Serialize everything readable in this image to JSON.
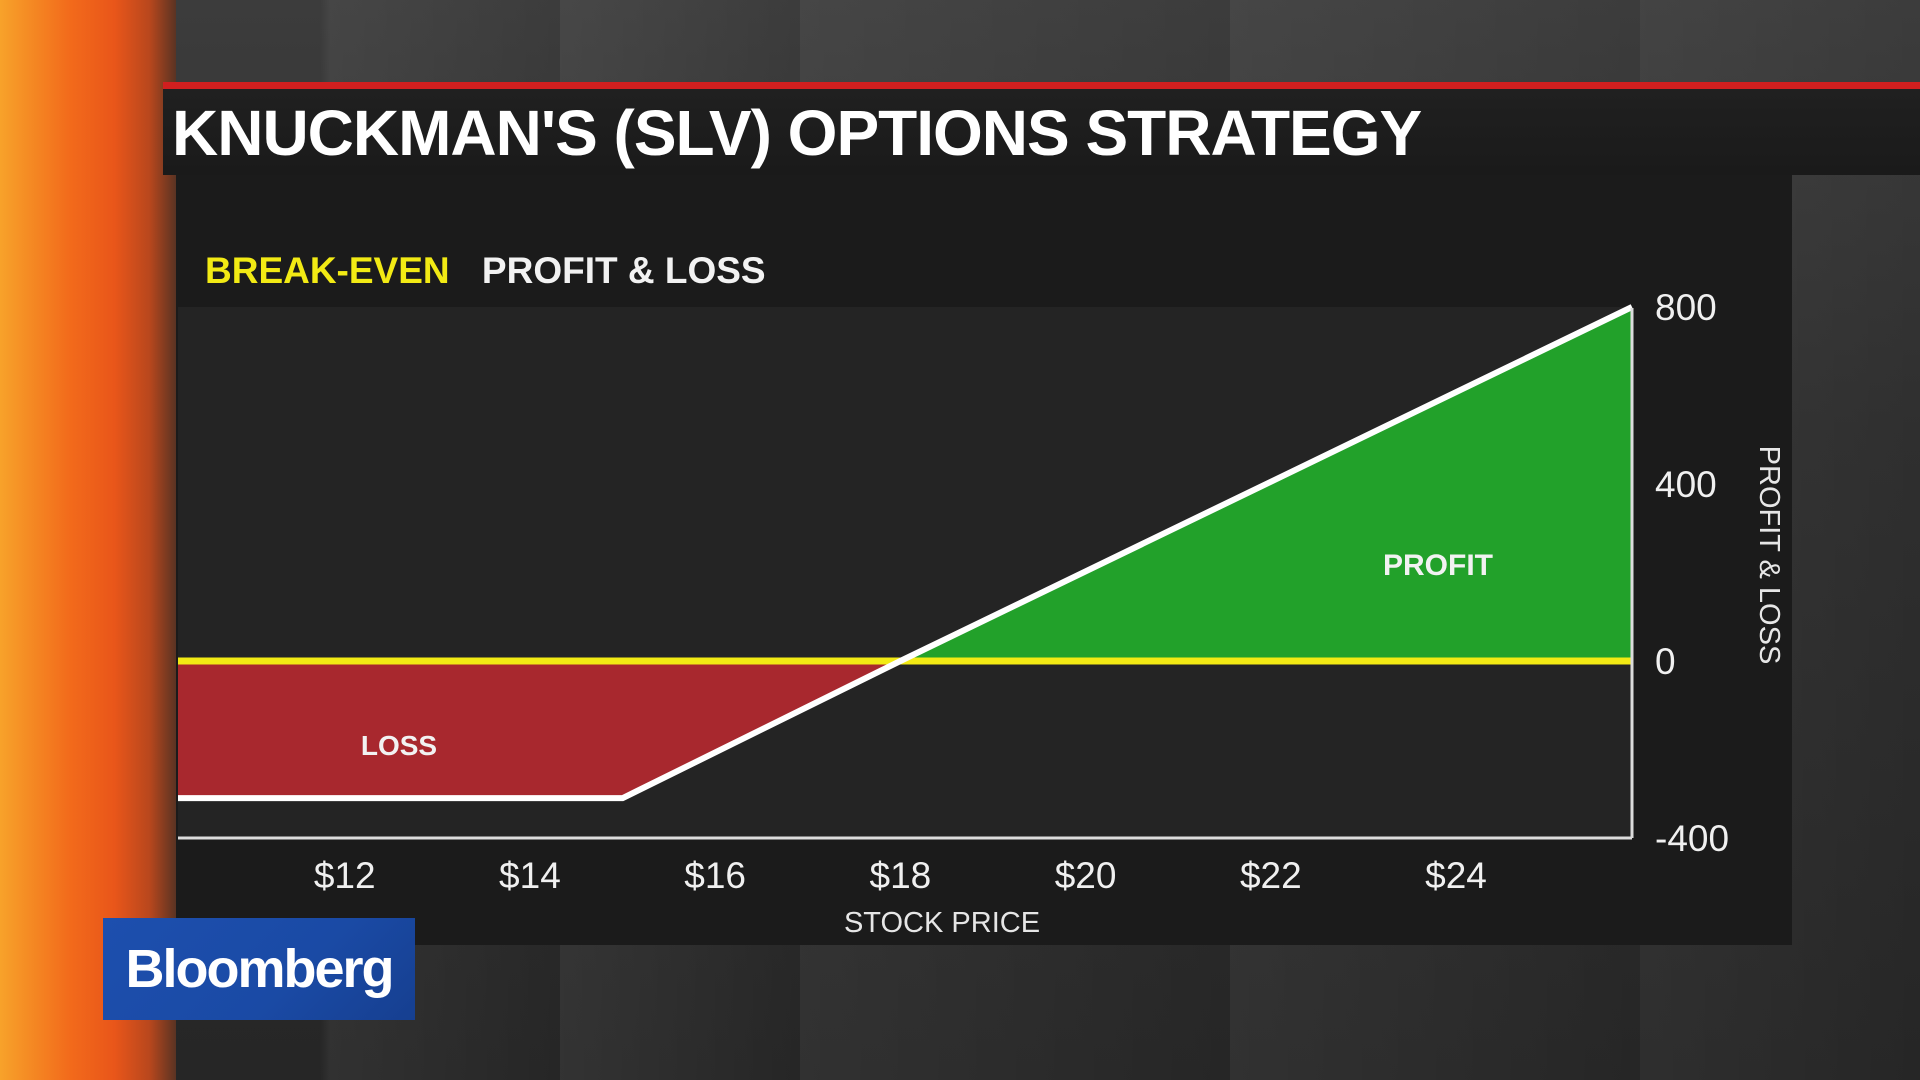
{
  "title": "KNUCKMAN'S (SLV) OPTIONS STRATEGY",
  "legend": {
    "break_even": "BREAK-EVEN",
    "profit_loss": "PROFIT & LOSS"
  },
  "brand": "Bloomberg",
  "colors": {
    "break_even": "#f2ea14",
    "profit": "#22a12a",
    "loss": "#a8282e",
    "payoff_line": "#ffffff",
    "title_rule": "#d11f1f",
    "brand_bg": "#1d4fae"
  },
  "chart_data": {
    "type": "line",
    "title": "",
    "xlabel": "STOCK PRICE",
    "ylabel": "PROFIT & LOSS",
    "x_ticks": [
      12,
      14,
      16,
      18,
      20,
      22,
      24
    ],
    "x_tick_labels": [
      "$12",
      "$14",
      "$16",
      "$18",
      "$20",
      "$22",
      "$24"
    ],
    "y_ticks": [
      -400,
      0,
      400,
      800
    ],
    "y_tick_labels": [
      "-400",
      "0",
      "400",
      "800"
    ],
    "xlim": [
      10.2,
      25.9
    ],
    "ylim": [
      -400,
      800
    ],
    "series": [
      {
        "x": [
          10.2,
          15.0,
          18.0,
          25.9
        ],
        "y": [
          -310,
          -310,
          0,
          800
        ]
      }
    ],
    "break_even_y": 0,
    "regions": {
      "loss": "LOSS",
      "profit": "PROFIT"
    },
    "y_axis_side": "right"
  }
}
